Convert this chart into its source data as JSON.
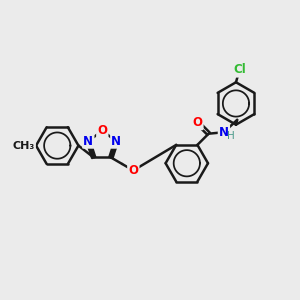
{
  "background_color": "#ebebeb",
  "bond_color": "#1a1a1a",
  "bond_width": 1.8,
  "atom_colors": {
    "N": "#0000ee",
    "O": "#ff0000",
    "Cl": "#33bb33",
    "C": "#1a1a1a",
    "H": "#4a9a8a"
  },
  "font_size": 8.5,
  "fig_width": 3.0,
  "fig_height": 3.0,
  "dpi": 100,
  "xlim": [
    0,
    10
  ],
  "ylim": [
    0,
    10
  ]
}
